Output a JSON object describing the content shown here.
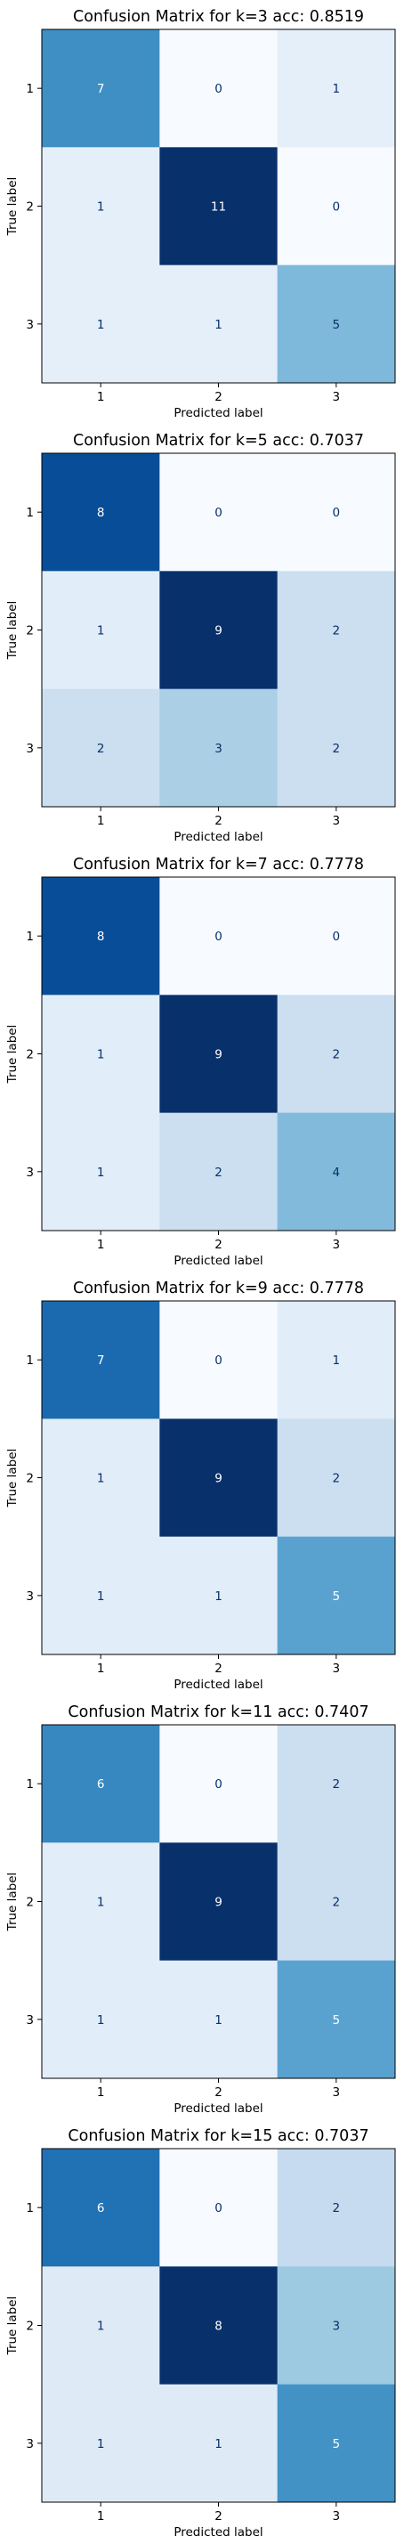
{
  "colors": {
    "text_light": "#ffffff",
    "text_dark": "#08306b",
    "axis": "#000000",
    "background": "#ffffff"
  },
  "chart_data": [
    {
      "type": "heatmap",
      "title": "Confusion Matrix for k=3 acc: 0.8519",
      "xlabel": "Predicted label",
      "ylabel": "True label",
      "x_ticks": [
        "1",
        "2",
        "3"
      ],
      "y_ticks": [
        "1",
        "2",
        "3"
      ],
      "matrix": [
        [
          7,
          0,
          1
        ],
        [
          1,
          11,
          0
        ],
        [
          1,
          1,
          5
        ]
      ],
      "colormap": "Blues"
    },
    {
      "type": "heatmap",
      "title": "Confusion Matrix for k=5 acc: 0.7037",
      "xlabel": "Predicted label",
      "ylabel": "True label",
      "x_ticks": [
        "1",
        "2",
        "3"
      ],
      "y_ticks": [
        "1",
        "2",
        "3"
      ],
      "matrix": [
        [
          8,
          0,
          0
        ],
        [
          1,
          9,
          2
        ],
        [
          2,
          3,
          2
        ]
      ],
      "colormap": "Blues"
    },
    {
      "type": "heatmap",
      "title": "Confusion Matrix for k=7 acc: 0.7778",
      "xlabel": "Predicted label",
      "ylabel": "True label",
      "x_ticks": [
        "1",
        "2",
        "3"
      ],
      "y_ticks": [
        "1",
        "2",
        "3"
      ],
      "matrix": [
        [
          8,
          0,
          0
        ],
        [
          1,
          9,
          2
        ],
        [
          1,
          2,
          4
        ]
      ],
      "colormap": "Blues"
    },
    {
      "type": "heatmap",
      "title": "Confusion Matrix for k=9 acc: 0.7778",
      "xlabel": "Predicted label",
      "ylabel": "True label",
      "x_ticks": [
        "1",
        "2",
        "3"
      ],
      "y_ticks": [
        "1",
        "2",
        "3"
      ],
      "matrix": [
        [
          7,
          0,
          1
        ],
        [
          1,
          9,
          2
        ],
        [
          1,
          1,
          5
        ]
      ],
      "colormap": "Blues"
    },
    {
      "type": "heatmap",
      "title": "Confusion Matrix for k=11 acc: 0.7407",
      "xlabel": "Predicted label",
      "ylabel": "True label",
      "x_ticks": [
        "1",
        "2",
        "3"
      ],
      "y_ticks": [
        "1",
        "2",
        "3"
      ],
      "matrix": [
        [
          6,
          0,
          2
        ],
        [
          1,
          9,
          2
        ],
        [
          1,
          1,
          5
        ]
      ],
      "colormap": "Blues"
    },
    {
      "type": "heatmap",
      "title": "Confusion Matrix for k=15 acc: 0.7037",
      "xlabel": "Predicted label",
      "ylabel": "True label",
      "x_ticks": [
        "1",
        "2",
        "3"
      ],
      "y_ticks": [
        "1",
        "2",
        "3"
      ],
      "matrix": [
        [
          6,
          0,
          2
        ],
        [
          1,
          8,
          3
        ],
        [
          1,
          1,
          5
        ]
      ],
      "colormap": "Blues"
    }
  ]
}
